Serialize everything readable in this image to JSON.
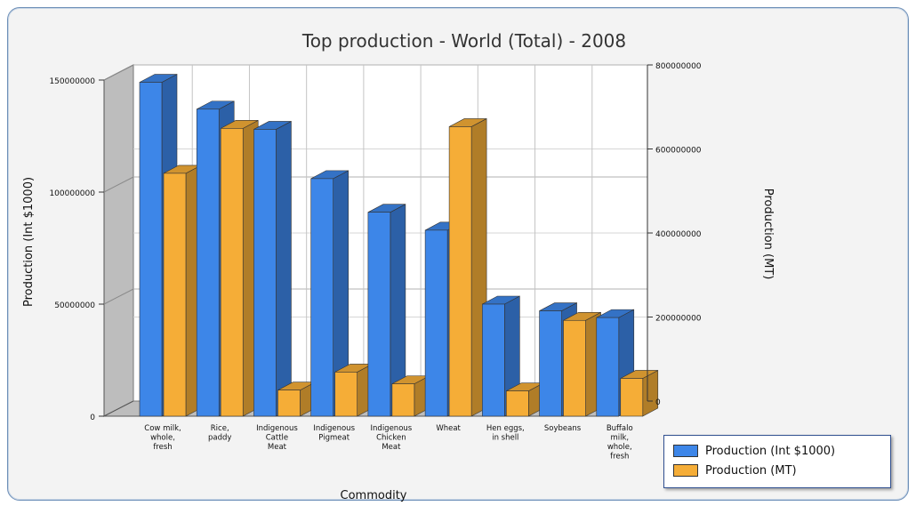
{
  "chart_data": {
    "type": "bar",
    "title": "Top production - World   (Total) - 2008",
    "xlabel": "Commodity",
    "ylabel_left": "Production (Int $1000)",
    "ylabel_right": "Production (MT)",
    "categories": [
      [
        "Cow milk,",
        "whole,",
        "fresh"
      ],
      [
        "Rice,",
        "paddy"
      ],
      [
        "Indigenous",
        "Cattle",
        "Meat"
      ],
      [
        "Indigenous",
        "Pigmeat"
      ],
      [
        "Indigenous",
        "Chicken",
        "Meat"
      ],
      [
        "Wheat"
      ],
      [
        "Hen eggs,",
        "in shell"
      ],
      [
        "Soybeans"
      ],
      [
        "Buffalo",
        "milk,",
        "whole,",
        "fresh"
      ]
    ],
    "series": [
      {
        "name": "Production (Int $1000)",
        "axis": "left",
        "color": "#3d86e8",
        "values": [
          149000000,
          137000000,
          128000000,
          106000000,
          91000000,
          83000000,
          50000000,
          47000000,
          44000000
        ]
      },
      {
        "name": "Production (MT)",
        "axis": "right",
        "color": "#f5ad37",
        "values": [
          578000000,
          685000000,
          62000000,
          105000000,
          77000000,
          689000000,
          60000000,
          228000000,
          90000000
        ]
      }
    ],
    "ylim_left": [
      0,
      150000000
    ],
    "yticks_left": [
      "0",
      "50000000",
      "100000000",
      "150000000"
    ],
    "ylim_right": [
      0,
      800000000
    ],
    "yticks_right": [
      "0",
      "200000000",
      "400000000",
      "600000000",
      "800000000"
    ],
    "grid": true,
    "legend_position": "bottom-right"
  }
}
